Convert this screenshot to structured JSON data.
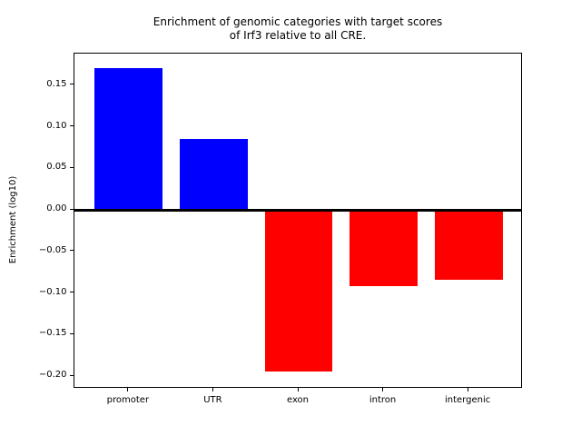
{
  "chart_data": {
    "type": "bar",
    "title": "Enrichment of genomic categories with target scores\nof Irf3 relative to all CRE.",
    "title_lines": [
      "Enrichment of genomic categories with target scores",
      "of Irf3 relative to all CRE."
    ],
    "categories": [
      "promoter",
      "UTR",
      "exon",
      "intron",
      "intergenic"
    ],
    "values": [
      0.17,
      0.085,
      -0.195,
      -0.092,
      -0.084
    ],
    "xlabel": "",
    "ylabel": "Enrichment (log10)",
    "ylim": [
      -0.2153,
      0.188
    ],
    "xlim": [
      -0.64,
      4.64
    ],
    "yticks": [
      0.15,
      0.1,
      0.05,
      0.0,
      -0.05,
      -0.1,
      -0.15,
      -0.2
    ],
    "bar_width_units": 0.8,
    "grid": false,
    "legend": null,
    "colors": {
      "positive_bar": "#0000ff",
      "negative_bar": "#ff0000",
      "axis": "#000000",
      "background": "#ffffff",
      "zero_line": "#000000"
    },
    "zero_line": {
      "show": true,
      "thickness_px": 3
    }
  }
}
